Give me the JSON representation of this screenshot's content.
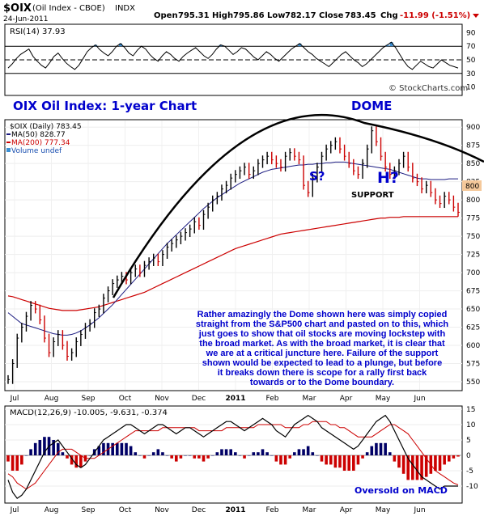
{
  "header": {
    "symbol": "$OIX",
    "name": "(Oil Index - CBOE)",
    "exchange": "INDX",
    "date": "24-Jun-2011",
    "open_label": "Open",
    "open": "795.31",
    "high_label": "High",
    "high": "795.86",
    "low_label": "Low",
    "low": "782.17",
    "close_label": "Close",
    "close": "783.45",
    "chg_label": "Chg",
    "chg": "-11.99 (-1.51%)",
    "watermark": "© StockCharts.com"
  },
  "rsi_panel": {
    "label": "RSI(14) 37.93"
  },
  "price_panel": {
    "legend_main": "$OIX (Daily) 783.45",
    "legend_ma50": "MA(50) 828.77",
    "legend_ma200": "MA(200) 777.34",
    "legend_volume": "Volume undef",
    "title": "OIX Oil Index: 1-year Chart",
    "dome_label": "DOME",
    "s_label": "S?",
    "h_label": "H?",
    "support_label": "SUPPORT",
    "commentary": [
      "Rather amazingly the Dome shown here was simply copied",
      "straight from the S&P500 chart and pasted on to this, which",
      "just goes to show that oil stocks are moving lockstep with",
      "the broad market. As with the broad market, it is clear that",
      "we are at a critical juncture here. Failure of the support",
      "shown would be expected to lead to a plunge, but before",
      "it breaks down there is scope for a rally first back",
      "towards or to the Dome boundary."
    ],
    "price_badge": "800"
  },
  "macd_panel": {
    "label": "MACD(12,26,9) -10.005, -9.631, -0.374",
    "note": "Oversold on MACD"
  },
  "colors": {
    "up": "#000000",
    "down": "#cc0000",
    "ma50": "#1a1a80",
    "ma200": "#cc0000",
    "title": "#0000cc",
    "rsi_fill": "#3b8fd4",
    "hist": "#000066",
    "hist_down": "#cc0000"
  },
  "chart_data": [
    {
      "type": "line",
      "name": "RSI(14)",
      "ylim": [
        0,
        100
      ],
      "yticks": [
        10,
        30,
        50,
        70,
        90
      ],
      "reference_lines": [
        30,
        50,
        70
      ],
      "values": [
        38,
        44,
        52,
        58,
        62,
        66,
        55,
        48,
        42,
        38,
        46,
        55,
        60,
        52,
        45,
        40,
        36,
        42,
        52,
        62,
        68,
        72,
        65,
        60,
        56,
        62,
        70,
        74,
        68,
        60,
        56,
        64,
        70,
        66,
        58,
        52,
        48,
        56,
        62,
        58,
        52,
        48,
        55,
        60,
        64,
        68,
        62,
        56,
        52,
        58,
        66,
        72,
        70,
        64,
        58,
        62,
        68,
        66,
        60,
        54,
        50,
        56,
        62,
        58,
        52,
        48,
        54,
        60,
        66,
        70,
        74,
        68,
        62,
        58,
        52,
        48,
        44,
        40,
        46,
        52,
        58,
        62,
        56,
        50,
        46,
        40,
        44,
        50,
        56,
        62,
        68,
        72,
        76,
        68,
        58,
        48,
        40,
        36,
        42,
        48,
        44,
        40,
        38,
        44,
        50,
        46,
        42,
        40,
        38
      ]
    },
    {
      "type": "line",
      "name": "$OIX (Daily)",
      "x_labels": [
        "Jul",
        "Aug",
        "Sep",
        "Oct",
        "Nov",
        "Dec",
        "2011",
        "Feb",
        "Mar",
        "Apr",
        "May",
        "Jun"
      ],
      "ylim": [
        540,
        908
      ],
      "yticks": [
        550,
        575,
        600,
        625,
        650,
        675,
        700,
        725,
        750,
        775,
        800,
        825,
        850,
        875,
        900
      ],
      "close": [
        553,
        575,
        610,
        625,
        640,
        655,
        650,
        635,
        610,
        590,
        605,
        615,
        600,
        585,
        590,
        605,
        615,
        625,
        630,
        645,
        650,
        665,
        675,
        685,
        690,
        695,
        690,
        700,
        705,
        700,
        710,
        715,
        720,
        715,
        725,
        735,
        740,
        745,
        750,
        755,
        760,
        770,
        765,
        780,
        790,
        800,
        805,
        815,
        820,
        830,
        835,
        840,
        845,
        835,
        840,
        850,
        855,
        860,
        855,
        850,
        845,
        860,
        865,
        860,
        855,
        820,
        810,
        830,
        845,
        860,
        870,
        875,
        880,
        870,
        860,
        850,
        840,
        835,
        850,
        870,
        895,
        880,
        860,
        845,
        835,
        840,
        850,
        860,
        845,
        830,
        825,
        815,
        820,
        810,
        800,
        795,
        805,
        800,
        790,
        783
      ],
      "ma50": [
        645,
        640,
        635,
        630,
        628,
        626,
        624,
        622,
        620,
        618,
        616,
        615,
        614,
        614,
        615,
        617,
        620,
        624,
        628,
        633,
        638,
        644,
        650,
        656,
        663,
        670,
        677,
        684,
        691,
        698,
        705,
        712,
        719,
        726,
        733,
        740,
        746,
        752,
        758,
        764,
        770,
        776,
        782,
        788,
        793,
        798,
        803,
        807,
        811,
        815,
        819,
        823,
        826,
        829,
        832,
        835,
        838,
        840,
        842,
        843,
        844,
        845,
        846,
        847,
        848,
        848,
        849,
        849,
        850,
        850,
        851,
        851,
        852,
        852,
        852,
        851,
        850,
        849,
        848,
        847,
        846,
        845,
        844,
        843,
        842,
        840,
        838,
        836,
        834,
        832,
        830,
        829,
        829,
        828,
        828,
        828,
        828,
        829,
        829,
        829
      ],
      "ma200": [
        668,
        667,
        665,
        663,
        661,
        659,
        657,
        655,
        653,
        651,
        650,
        649,
        648,
        648,
        648,
        648,
        649,
        650,
        651,
        652,
        653,
        655,
        657,
        659,
        661,
        663,
        665,
        667,
        669,
        671,
        673,
        676,
        679,
        682,
        685,
        688,
        691,
        694,
        697,
        700,
        703,
        706,
        709,
        712,
        715,
        718,
        721,
        724,
        727,
        730,
        733,
        735,
        737,
        739,
        741,
        743,
        745,
        747,
        749,
        751,
        753,
        754,
        755,
        756,
        757,
        758,
        759,
        760,
        761,
        762,
        763,
        764,
        765,
        766,
        767,
        768,
        769,
        770,
        771,
        772,
        773,
        774,
        775,
        775,
        776,
        776,
        776,
        777,
        777,
        777,
        777,
        777,
        777,
        777,
        777,
        777,
        777,
        777,
        777,
        777
      ],
      "annotations": [
        "DOME",
        "S?",
        "H?",
        "SUPPORT"
      ]
    },
    {
      "type": "line",
      "name": "MACD(12,26,9)",
      "ylim": [
        -15,
        15
      ],
      "yticks": [
        -10,
        -5,
        0,
        5,
        10,
        15
      ],
      "macd": [
        -8,
        -12,
        -14,
        -13,
        -11,
        -8,
        -5,
        -2,
        1,
        3,
        4,
        5,
        3,
        1,
        -1,
        -3,
        -4,
        -3,
        -1,
        1,
        3,
        5,
        6,
        7,
        8,
        9,
        10,
        10,
        9,
        8,
        7,
        8,
        9,
        10,
        10,
        9,
        8,
        7,
        8,
        9,
        9,
        8,
        7,
        6,
        7,
        8,
        9,
        10,
        11,
        11,
        10,
        9,
        8,
        9,
        10,
        11,
        12,
        11,
        10,
        8,
        7,
        6,
        8,
        10,
        11,
        12,
        13,
        12,
        11,
        9,
        8,
        7,
        6,
        5,
        4,
        3,
        2,
        3,
        5,
        7,
        9,
        11,
        12,
        13,
        11,
        8,
        5,
        2,
        -1,
        -3,
        -5,
        -7,
        -8,
        -9,
        -10,
        -11,
        -10,
        -10,
        -10,
        -10
      ],
      "signal": [
        -6,
        -7,
        -9,
        -10,
        -11,
        -10,
        -9,
        -7,
        -5,
        -3,
        -1,
        1,
        2,
        2,
        2,
        1,
        0,
        -1,
        -1,
        -1,
        0,
        1,
        2,
        3,
        4,
        5,
        6,
        7,
        8,
        8,
        8,
        8,
        8,
        8,
        9,
        9,
        9,
        9,
        9,
        9,
        9,
        9,
        8,
        8,
        8,
        8,
        8,
        8,
        9,
        9,
        9,
        9,
        9,
        9,
        9,
        10,
        10,
        10,
        10,
        10,
        10,
        9,
        9,
        9,
        9,
        10,
        10,
        11,
        11,
        11,
        11,
        10,
        10,
        9,
        9,
        8,
        7,
        6,
        6,
        6,
        6,
        7,
        8,
        9,
        10,
        10,
        9,
        8,
        7,
        5,
        3,
        1,
        -1,
        -3,
        -5,
        -6,
        -7,
        -8,
        -9,
        -9.6
      ]
    }
  ]
}
